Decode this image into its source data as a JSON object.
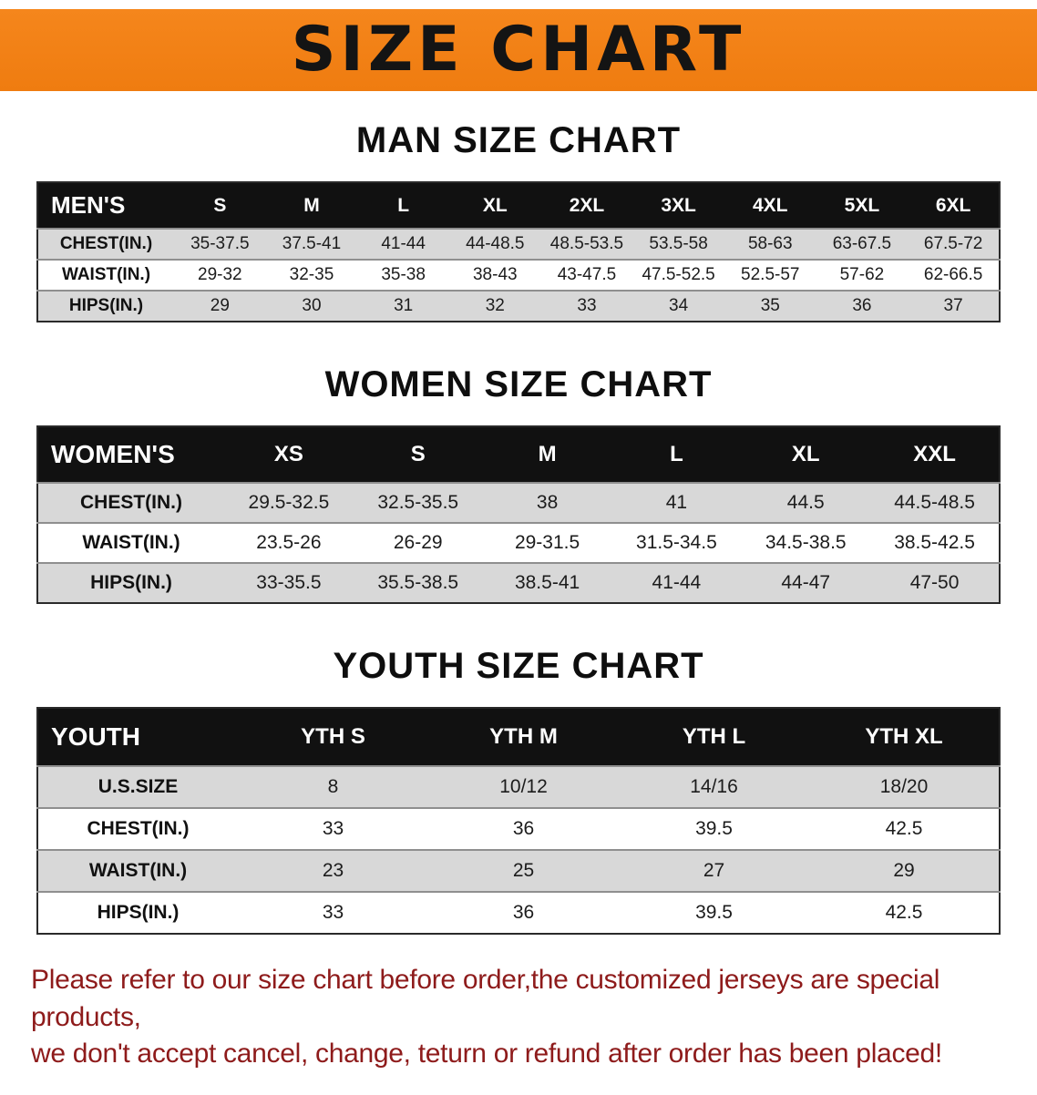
{
  "banner": {
    "title": "SIZE CHART"
  },
  "colors": {
    "banner_bg": "#f5861c",
    "banner_bg_dark": "#ef7c10",
    "header_bg": "#111111",
    "row_alt": "#d8d8d8",
    "note_color": "#8e1b1b"
  },
  "men": {
    "heading": "MAN SIZE CHART",
    "label": "MEN'S",
    "columns": [
      "S",
      "M",
      "L",
      "XL",
      "2XL",
      "3XL",
      "4XL",
      "5XL",
      "6XL"
    ],
    "rows": [
      {
        "label": "CHEST(IN.)",
        "values": [
          "35-37.5",
          "37.5-41",
          "41-44",
          "44-48.5",
          "48.5-53.5",
          "53.5-58",
          "58-63",
          "63-67.5",
          "67.5-72"
        ]
      },
      {
        "label": "WAIST(IN.)",
        "values": [
          "29-32",
          "32-35",
          "35-38",
          "38-43",
          "43-47.5",
          "47.5-52.5",
          "52.5-57",
          "57-62",
          "62-66.5"
        ]
      },
      {
        "label": "HIPS(IN.)",
        "values": [
          "29",
          "30",
          "31",
          "32",
          "33",
          "34",
          "35",
          "36",
          "37"
        ]
      }
    ]
  },
  "women": {
    "heading": "WOMEN SIZE CHART",
    "label": "WOMEN'S",
    "columns": [
      "XS",
      "S",
      "M",
      "L",
      "XL",
      "XXL"
    ],
    "rows": [
      {
        "label": "CHEST(IN.)",
        "values": [
          "29.5-32.5",
          "32.5-35.5",
          "38",
          "41",
          "44.5",
          "44.5-48.5"
        ]
      },
      {
        "label": "WAIST(IN.)",
        "values": [
          "23.5-26",
          "26-29",
          "29-31.5",
          "31.5-34.5",
          "34.5-38.5",
          "38.5-42.5"
        ]
      },
      {
        "label": "HIPS(IN.)",
        "values": [
          "33-35.5",
          "35.5-38.5",
          "38.5-41",
          "41-44",
          "44-47",
          "47-50"
        ]
      }
    ]
  },
  "youth": {
    "heading": "YOUTH SIZE CHART",
    "label": "YOUTH",
    "columns": [
      "YTH S",
      "YTH M",
      "YTH L",
      "YTH XL"
    ],
    "rows": [
      {
        "label": "U.S.SIZE",
        "values": [
          "8",
          "10/12",
          "14/16",
          "18/20"
        ]
      },
      {
        "label": "CHEST(IN.)",
        "values": [
          "33",
          "36",
          "39.5",
          "42.5"
        ]
      },
      {
        "label": "WAIST(IN.)",
        "values": [
          "23",
          "25",
          "27",
          "29"
        ]
      },
      {
        "label": "HIPS(IN.)",
        "values": [
          "33",
          "36",
          "39.5",
          "42.5"
        ]
      }
    ]
  },
  "note": {
    "line1": "Please refer to our size chart before order,the customized jerseys are special products,",
    "line2": "we don't accept cancel, change, teturn or refund after order has been placed!"
  }
}
